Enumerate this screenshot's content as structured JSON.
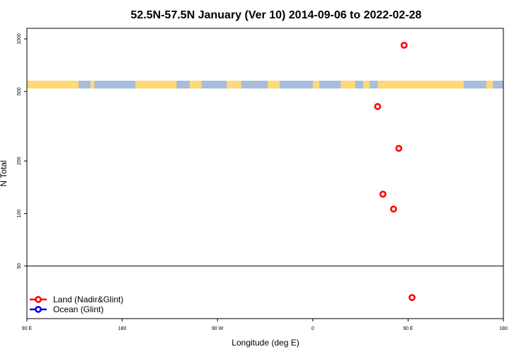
{
  "chart_data": {
    "type": "scatter",
    "title": "52.5N-57.5N January (Ver 10)   2014-09-06 to 2022-02-28",
    "xlabel": "Longitude (deg E)",
    "ylabel": "N Total",
    "x_tick_labels": [
      "90 E",
      "180",
      "90 W",
      "0",
      "90 E",
      "180"
    ],
    "y_tick_labels": [
      "50",
      "100",
      "200",
      "500",
      "1000"
    ],
    "y_scale": "log",
    "ylim": [
      25,
      1150
    ],
    "xlim": [
      90,
      450
    ],
    "grid": false,
    "legend_position": "bottom-left",
    "colors": {
      "land": "#ff0000",
      "ocean": "#0000ee",
      "map_land": "#ffd878",
      "map_ocean": "#a8bcdc"
    },
    "series": [
      {
        "name": "Land (Nadir&Glint)",
        "color": "#ff0000",
        "points": [
          {
            "x": 375,
            "y": 920
          },
          {
            "x": 355,
            "y": 410
          },
          {
            "x": 371,
            "y": 236
          },
          {
            "x": 359,
            "y": 129
          },
          {
            "x": 367,
            "y": 106
          },
          {
            "x": 381,
            "y": 33
          }
        ]
      },
      {
        "name": "Ocean (Glint)",
        "color": "#0000ee",
        "points": []
      }
    ],
    "reference_line": {
      "y": 50
    },
    "map_strip_lat": "52.5N-57.5N"
  }
}
